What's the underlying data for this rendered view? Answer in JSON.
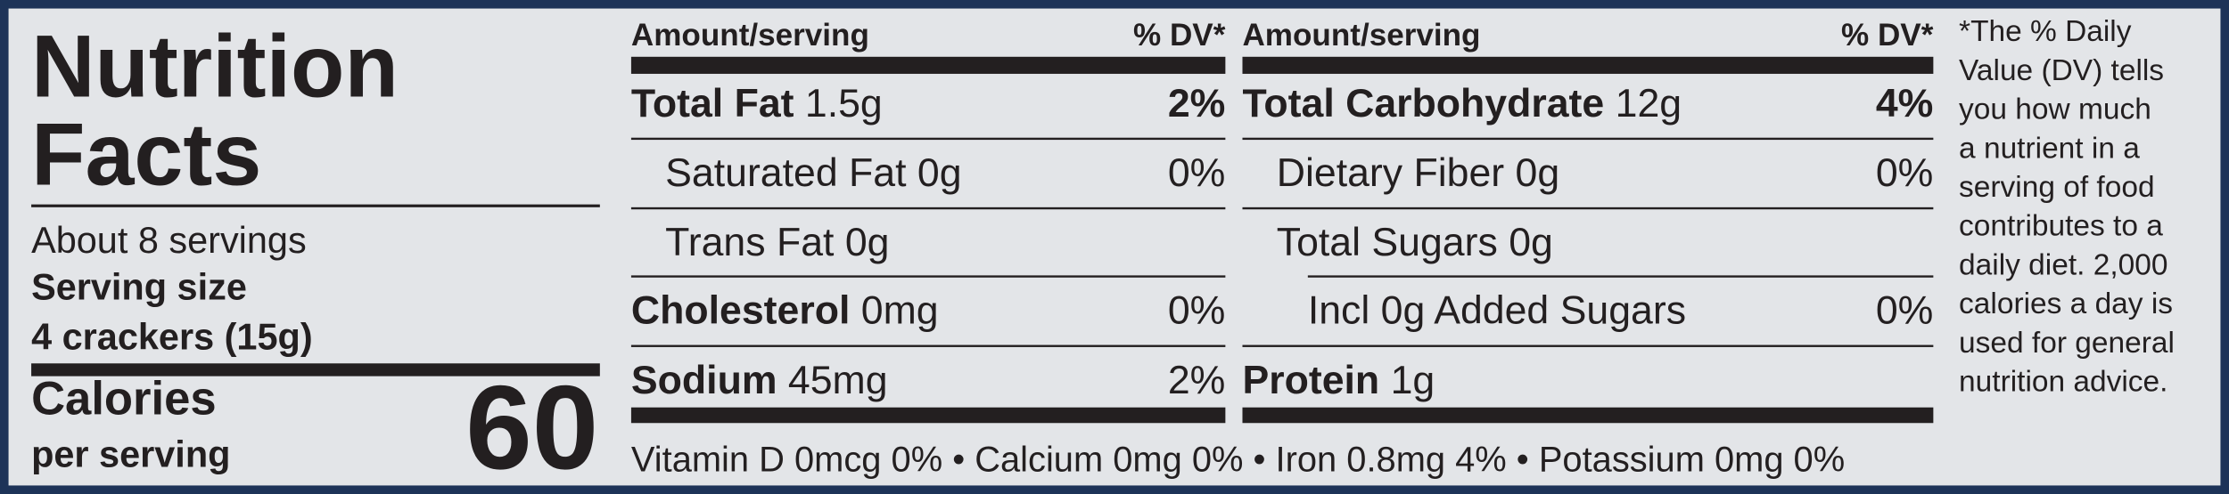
{
  "header": {
    "title": [
      "Nutrition",
      "Facts"
    ],
    "servings": "About 8 servings",
    "serving_size_label": "Serving size",
    "serving_size": "4 crackers (15g)",
    "calories_label": "Calories",
    "calories_sub": "per serving",
    "calories": 60
  },
  "columns": [
    {
      "header_left": "Amount/serving",
      "header_right": "% DV*",
      "rows": [
        {
          "name": "Total Fat",
          "amount": "1.5g",
          "dv": "2%"
        },
        {
          "name": "Saturated Fat",
          "amount": "0g",
          "dv": "0%"
        },
        {
          "name": "Trans Fat",
          "amount": "0g"
        },
        {
          "name": "Cholesterol",
          "amount": "0mg",
          "dv": "0%"
        },
        {
          "name": "Sodium",
          "amount": "45mg",
          "dv": "2%"
        }
      ]
    },
    {
      "header_left": "Amount/serving",
      "header_right": "% DV*",
      "rows": [
        {
          "name": "Total Carbohydrate",
          "amount": "12g",
          "dv": "4%"
        },
        {
          "name": "Dietary Fiber",
          "amount": "0g",
          "dv": "0%"
        },
        {
          "name": "Total Sugars",
          "amount": "0g"
        },
        {
          "name": "Incl 0g Added Sugars",
          "dv": "0%"
        },
        {
          "name": "Protein",
          "amount": "1g"
        }
      ]
    }
  ],
  "vitamins": "Vitamin D 0mcg 0% • Calcium 0mg 0% • Iron 0.8mg 4% • Potassium 0mg 0%",
  "footnote": [
    "*The % Daily",
    "Value (DV) tells",
    "you how much",
    "a nutrient in a",
    "serving of food",
    "contributes to a",
    "daily diet. 2,000",
    "calories a day is",
    "used for general",
    "nutrition advice."
  ]
}
